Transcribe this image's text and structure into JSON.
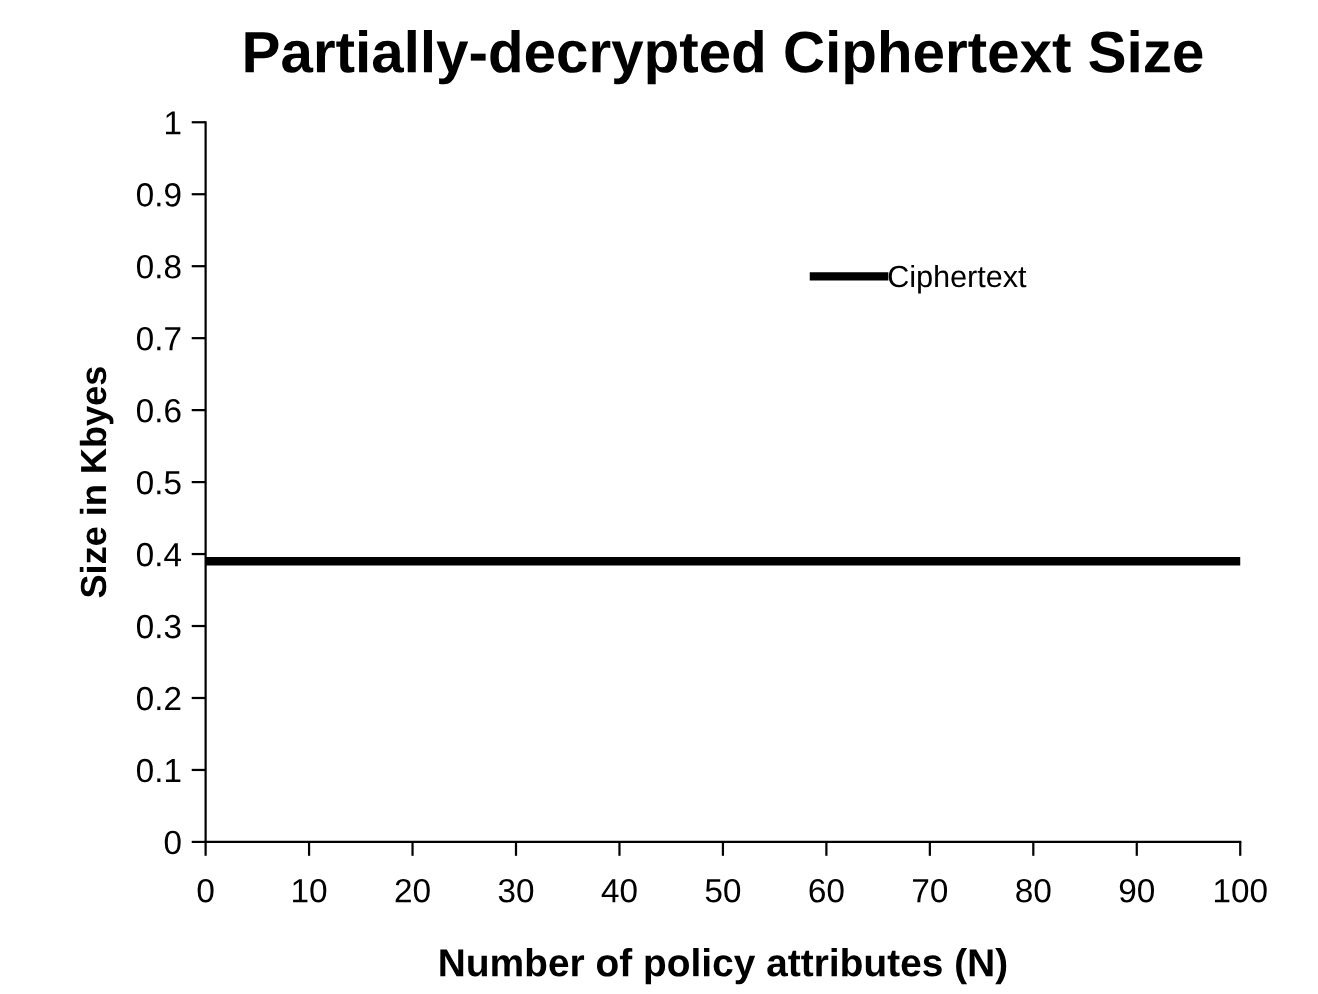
{
  "chart_data": {
    "type": "line",
    "title": "Partially-decrypted Ciphertext Size",
    "xlabel": "Number of policy attributes (N)",
    "ylabel": "Size in Kbyes",
    "x": [
      0,
      100
    ],
    "series": [
      {
        "name": "Ciphertext",
        "color": "#000000",
        "values": [
          0.39,
          0.39
        ]
      }
    ],
    "xlim": [
      0,
      100
    ],
    "xticks": [
      0,
      10,
      20,
      30,
      40,
      50,
      60,
      70,
      80,
      90,
      100
    ],
    "ylim": [
      0,
      1
    ],
    "yticks": [
      0,
      0.1,
      0.2,
      0.3,
      0.4,
      0.5,
      0.6,
      0.7,
      0.8,
      0.9,
      1
    ],
    "grid": false,
    "legend": "top right",
    "marker": "none",
    "line_style": "solid"
  }
}
